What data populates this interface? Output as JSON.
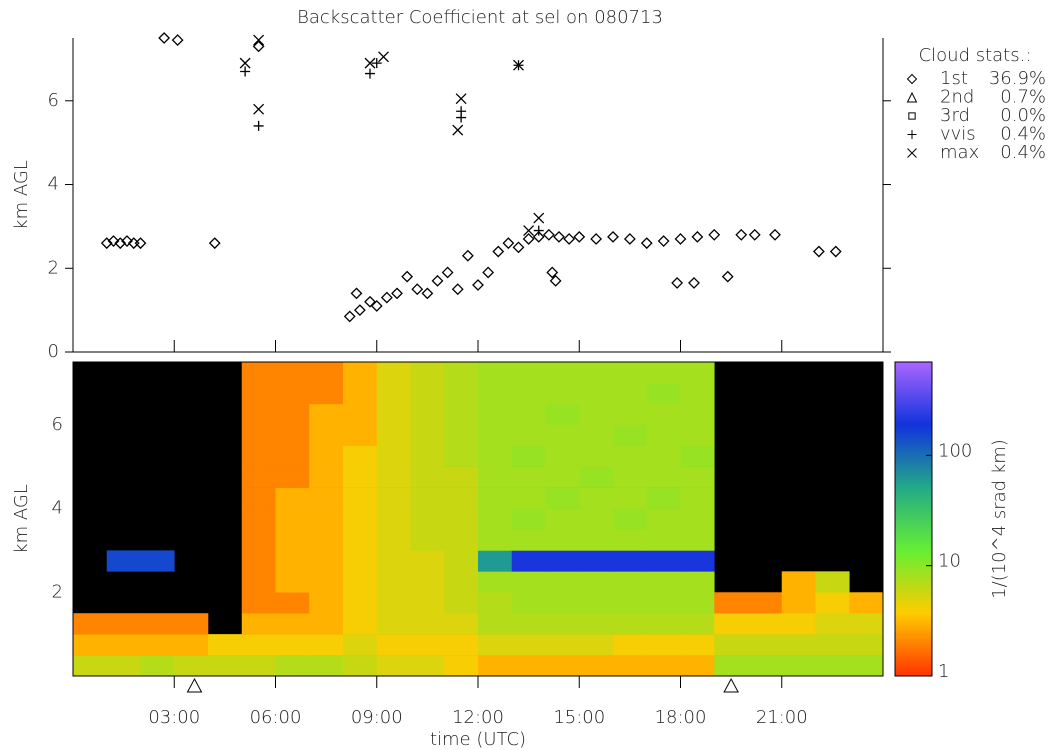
{
  "chart_data": [
    {
      "type": "scatter",
      "title": "Backscatter Coefficient at sel on 080713",
      "ylabel": "km AGL",
      "xlim": [
        0,
        24
      ],
      "ylim": [
        0,
        7.5
      ],
      "yticks": [
        0,
        2,
        4,
        6
      ],
      "legend_title": "Cloud stats.:",
      "color": "#000000",
      "series": [
        {
          "name": "1st",
          "marker": "diamond",
          "stat": 36.9,
          "stat_label": "36.9%",
          "x": [
            1.0,
            1.2,
            1.4,
            1.6,
            1.8,
            2.0,
            2.7,
            3.1,
            4.2,
            5.5,
            8.2,
            8.4,
            8.5,
            8.8,
            9.0,
            9.3,
            9.6,
            9.9,
            10.2,
            10.5,
            10.8,
            11.1,
            11.4,
            11.7,
            12.0,
            12.3,
            12.6,
            12.9,
            13.2,
            13.5,
            13.8,
            14.1,
            14.4,
            14.7,
            15.0,
            15.5,
            16.0,
            16.5,
            17.0,
            17.5,
            18.0,
            18.5,
            19.0,
            14.2,
            14.3,
            17.9,
            18.4,
            19.4,
            19.8,
            20.2,
            20.8,
            22.1,
            22.6
          ],
          "values": [
            2.6,
            2.65,
            2.6,
            2.65,
            2.6,
            2.6,
            7.5,
            7.45,
            2.6,
            7.3,
            0.85,
            1.4,
            1.0,
            1.2,
            1.1,
            1.3,
            1.4,
            1.8,
            1.5,
            1.4,
            1.7,
            1.9,
            1.5,
            2.3,
            1.6,
            1.9,
            2.4,
            2.6,
            2.5,
            2.7,
            2.75,
            2.8,
            2.75,
            2.7,
            2.75,
            2.7,
            2.75,
            2.7,
            2.6,
            2.65,
            2.7,
            2.75,
            2.8,
            1.9,
            1.7,
            1.65,
            1.65,
            1.8,
            2.8,
            2.8,
            2.8,
            2.4,
            2.4
          ]
        },
        {
          "name": "2nd",
          "marker": "triangle",
          "stat": 0.7,
          "stat_label": "0.7%",
          "x": [],
          "values": []
        },
        {
          "name": "3rd",
          "marker": "square",
          "stat": 0.0,
          "stat_label": "0.0%",
          "x": [],
          "values": []
        },
        {
          "name": "vvis",
          "marker": "plus",
          "stat": 0.4,
          "stat_label": "0.4%",
          "x": [
            5.1,
            5.5,
            8.8,
            9.0,
            11.5,
            11.5,
            13.2,
            13.8
          ],
          "values": [
            6.7,
            5.4,
            6.65,
            6.9,
            5.6,
            5.75,
            6.85,
            2.9
          ]
        },
        {
          "name": "max",
          "marker": "cross",
          "stat": 0.4,
          "stat_label": "0.4%",
          "x": [
            5.1,
            5.5,
            5.5,
            8.8,
            9.2,
            11.4,
            11.5,
            13.2,
            13.8,
            13.5
          ],
          "values": [
            6.9,
            5.8,
            7.45,
            6.9,
            7.05,
            5.3,
            6.05,
            6.85,
            3.2,
            2.9
          ]
        }
      ]
    },
    {
      "type": "heatmap",
      "ylabel": "km AGL",
      "xlabel": "time (UTC)",
      "xlim": [
        0,
        24
      ],
      "ylim": [
        0,
        7.5
      ],
      "yticks": [
        2,
        4,
        6
      ],
      "xticks": [
        {
          "value": 3,
          "label": "03:00"
        },
        {
          "value": 6,
          "label": "06:00"
        },
        {
          "value": 9,
          "label": "09:00"
        },
        {
          "value": 12,
          "label": "12:00"
        },
        {
          "value": 15,
          "label": "15:00"
        },
        {
          "value": 18,
          "label": "18:00"
        },
        {
          "value": 21,
          "label": "21:00"
        }
      ],
      "x_bins": [
        0,
        1,
        2,
        3,
        4,
        5,
        6,
        7,
        8,
        9,
        10,
        11,
        12,
        13,
        14,
        15,
        16,
        17,
        18,
        19,
        20,
        21,
        22,
        23,
        24
      ],
      "y_bins": [
        0,
        0.5,
        1,
        1.5,
        2,
        2.5,
        3,
        3.5,
        4,
        4.5,
        5,
        5.5,
        6,
        6.5,
        7,
        7.5
      ],
      "z": [
        [
          6,
          6,
          7,
          6,
          6,
          6,
          7,
          7,
          6,
          5,
          5,
          4,
          3,
          3,
          3,
          3,
          3,
          3,
          3,
          8,
          8,
          8,
          8,
          8
        ],
        [
          3,
          3,
          3,
          3,
          4,
          4,
          4,
          4,
          5,
          4,
          4,
          4,
          5,
          5,
          5,
          5,
          4,
          4,
          4,
          6,
          6,
          6,
          6,
          6
        ],
        [
          2,
          2,
          2,
          2,
          null,
          3,
          3,
          3,
          4,
          5,
          5,
          5,
          7,
          7,
          7,
          7,
          7,
          7,
          7,
          4,
          4,
          4,
          5,
          5
        ],
        [
          null,
          null,
          null,
          null,
          null,
          2,
          2,
          3,
          4,
          5,
          5,
          6,
          7,
          8,
          8,
          8,
          8,
          8,
          8,
          2,
          2,
          3,
          4,
          3
        ],
        [
          null,
          null,
          null,
          null,
          null,
          2,
          3,
          3,
          4,
          5,
          5,
          6,
          8,
          8,
          8,
          8,
          8,
          8,
          8,
          null,
          null,
          3,
          6,
          null
        ],
        [
          null,
          150,
          150,
          null,
          null,
          2,
          3,
          3,
          4,
          5,
          5,
          6,
          60,
          200,
          200,
          200,
          200,
          200,
          200,
          null,
          null,
          null,
          null,
          null
        ],
        [
          null,
          null,
          null,
          null,
          null,
          2,
          3,
          3,
          4,
          5,
          6,
          6,
          8,
          8,
          8,
          8,
          8,
          8,
          8,
          null,
          null,
          null,
          null,
          null
        ],
        [
          null,
          null,
          null,
          null,
          null,
          2,
          3,
          3,
          4,
          5,
          6,
          6,
          8,
          9,
          8,
          8,
          9,
          8,
          8,
          null,
          null,
          null,
          null,
          null
        ],
        [
          null,
          null,
          null,
          null,
          null,
          2,
          3,
          3,
          4,
          5,
          6,
          6,
          8,
          8,
          9,
          8,
          8,
          9,
          8,
          null,
          null,
          null,
          null,
          null
        ],
        [
          null,
          null,
          null,
          null,
          null,
          2,
          2,
          3,
          4,
          5,
          6,
          6,
          8,
          8,
          8,
          9,
          8,
          8,
          8,
          null,
          null,
          null,
          null,
          null
        ],
        [
          null,
          null,
          null,
          null,
          null,
          2,
          2,
          3,
          4,
          5,
          6,
          7,
          8,
          9,
          8,
          8,
          8,
          8,
          9,
          null,
          null,
          null,
          null,
          null
        ],
        [
          null,
          null,
          null,
          null,
          null,
          2,
          2,
          3,
          3,
          5,
          6,
          7,
          8,
          8,
          8,
          8,
          9,
          8,
          8,
          null,
          null,
          null,
          null,
          null
        ],
        [
          null,
          null,
          null,
          null,
          null,
          2,
          2,
          3,
          3,
          5,
          6,
          7,
          8,
          8,
          9,
          8,
          8,
          8,
          8,
          null,
          null,
          null,
          null,
          null
        ],
        [
          null,
          null,
          null,
          null,
          null,
          2,
          2,
          2,
          3,
          5,
          6,
          7,
          8,
          8,
          8,
          8,
          8,
          9,
          8,
          null,
          null,
          null,
          null,
          null
        ],
        [
          null,
          null,
          null,
          null,
          null,
          2,
          2,
          2,
          3,
          5,
          6,
          7,
          8,
          8,
          8,
          8,
          8,
          8,
          8,
          null,
          null,
          null,
          null,
          null
        ]
      ],
      "log_color": true,
      "clim": [
        1,
        700
      ],
      "cticks": [
        1,
        10,
        100
      ],
      "clabel": "1/(10^4 srad km)",
      "colormap": [
        "#ff3300",
        "#ffcc00",
        "#66ee33",
        "#22aa88",
        "#1133dd",
        "#aa66ff"
      ],
      "null_color": "#000000",
      "markers_x": [
        3.6,
        19.5
      ]
    }
  ]
}
